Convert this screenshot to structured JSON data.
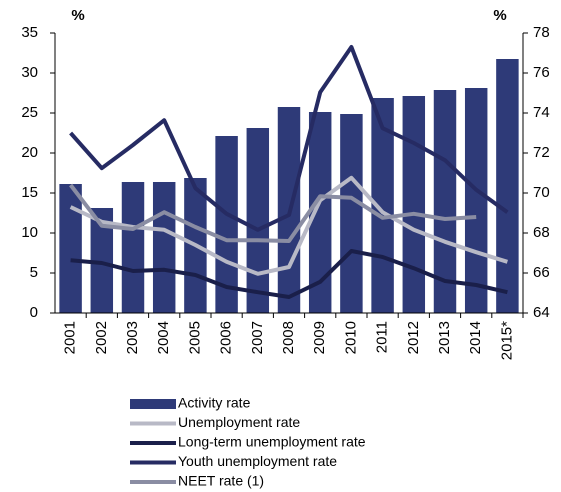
{
  "chart_data": {
    "type": "bar-line",
    "ylabel": "%",
    "y2label": "%",
    "categories": [
      "2001",
      "2002",
      "2003",
      "2004",
      "2005",
      "2006",
      "2007",
      "2008",
      "2009",
      "2010",
      "2011",
      "2012",
      "2013",
      "2014",
      "2015*"
    ],
    "ylim": [
      0,
      35
    ],
    "yticks": [
      0,
      5,
      10,
      15,
      20,
      25,
      30,
      35
    ],
    "y2lim": [
      64,
      78
    ],
    "y2ticks": [
      64,
      66,
      68,
      70,
      72,
      74,
      76,
      78
    ],
    "series": [
      {
        "name": "Activity rate",
        "type": "bar",
        "axis": "y2",
        "color": "#2e3a78",
        "values": [
          70.45,
          69.25,
          70.55,
          70.55,
          70.75,
          72.85,
          73.25,
          74.3,
          74.05,
          73.95,
          74.75,
          74.85,
          75.15,
          75.25,
          76.7
        ]
      },
      {
        "name": "Unemployment rate",
        "type": "line",
        "color": "#b8b9c6",
        "values": [
          13.25,
          11.4,
          10.75,
          10.4,
          8.5,
          6.4,
          4.9,
          5.75,
          14.1,
          16.9,
          12.6,
          10.4,
          8.9,
          7.6,
          6.4
        ]
      },
      {
        "name": "Long-term unemployment rate",
        "type": "line",
        "color": "#1a1f4a",
        "values": [
          6.6,
          6.25,
          5.25,
          5.4,
          4.75,
          3.25,
          2.6,
          2.0,
          3.9,
          7.75,
          7.0,
          5.6,
          4.0,
          3.5,
          2.6
        ]
      },
      {
        "name": "Youth unemployment rate",
        "type": "line",
        "color": "#262b63",
        "values": [
          22.5,
          18.1,
          21.0,
          24.1,
          15.6,
          12.4,
          10.4,
          12.25,
          27.6,
          33.25,
          23.1,
          21.25,
          19.1,
          15.4,
          12.6
        ]
      },
      {
        "name": "NEET rate (1)",
        "type": "line",
        "color": "#8a8da3",
        "values": [
          16.0,
          10.9,
          10.5,
          12.6,
          10.75,
          9.1,
          9.1,
          9.0,
          14.6,
          14.4,
          11.9,
          12.4,
          11.75,
          12.0,
          null
        ]
      }
    ]
  }
}
